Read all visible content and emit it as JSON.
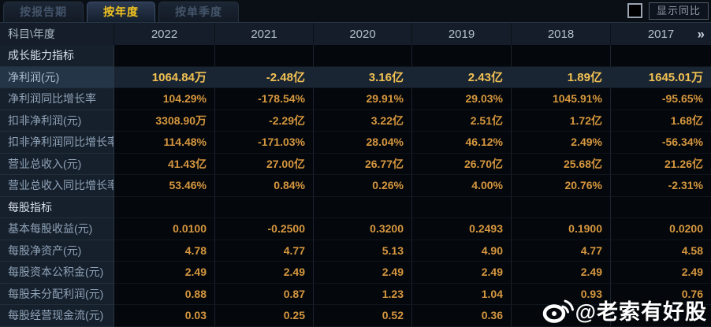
{
  "tabs": [
    {
      "label": "按报告期",
      "active": false
    },
    {
      "label": "按年度",
      "active": true
    },
    {
      "label": "按单季度",
      "active": false
    }
  ],
  "controls": {
    "show_yoy_label": "显示同比",
    "checkbox_checked": false
  },
  "table": {
    "header": [
      "科目\\年度",
      "2022",
      "2021",
      "2020",
      "2019",
      "2018",
      "2017"
    ],
    "more_icon": "»",
    "rows": [
      {
        "label": "成长能力指标",
        "type": "section",
        "values": [
          "",
          "",
          "",
          "",
          "",
          ""
        ]
      },
      {
        "label": "净利润(元)",
        "type": "highlight",
        "values": [
          "1064.84万",
          "-2.48亿",
          "3.16亿",
          "2.43亿",
          "1.89亿",
          "1645.01万"
        ]
      },
      {
        "label": "净利润同比增长率",
        "type": "data",
        "values": [
          "104.29%",
          "-178.54%",
          "29.91%",
          "29.03%",
          "1045.91%",
          "-95.65%"
        ]
      },
      {
        "label": "扣非净利润(元)",
        "type": "data",
        "values": [
          "3308.90万",
          "-2.29亿",
          "3.22亿",
          "2.51亿",
          "1.72亿",
          "1.68亿"
        ]
      },
      {
        "label": "扣非净利润同比增长率",
        "type": "data",
        "values": [
          "114.48%",
          "-171.03%",
          "28.04%",
          "46.12%",
          "2.49%",
          "-56.34%"
        ]
      },
      {
        "label": "营业总收入(元)",
        "type": "data",
        "values": [
          "41.43亿",
          "27.00亿",
          "26.77亿",
          "26.70亿",
          "25.68亿",
          "21.26亿"
        ]
      },
      {
        "label": "营业总收入同比增长率",
        "type": "data",
        "values": [
          "53.46%",
          "0.84%",
          "0.26%",
          "4.00%",
          "20.76%",
          "-2.31%"
        ]
      },
      {
        "label": "每股指标",
        "type": "section",
        "values": [
          "",
          "",
          "",
          "",
          "",
          ""
        ]
      },
      {
        "label": "基本每股收益(元)",
        "type": "data",
        "values": [
          "0.0100",
          "-0.2500",
          "0.3200",
          "0.2493",
          "0.1900",
          "0.0200"
        ]
      },
      {
        "label": "每股净资产(元)",
        "type": "data",
        "values": [
          "4.78",
          "4.77",
          "5.13",
          "4.90",
          "4.77",
          "4.58"
        ]
      },
      {
        "label": "每股资本公积金(元)",
        "type": "data",
        "values": [
          "2.49",
          "2.49",
          "2.49",
          "2.49",
          "2.49",
          "2.49"
        ]
      },
      {
        "label": "每股未分配利润(元)",
        "type": "data",
        "values": [
          "0.88",
          "0.87",
          "1.23",
          "1.04",
          "0.93",
          "0.76"
        ]
      },
      {
        "label": "每股经营现金流(元)",
        "type": "data",
        "values": [
          "0.03",
          "0.25",
          "0.52",
          "0.36",
          "",
          ""
        ]
      }
    ]
  },
  "watermark": {
    "text": "@老索有好股",
    "icon": "weibo-icon"
  },
  "colors": {
    "tab_active_text": "#f5c51f",
    "value_orange": "#d6973f",
    "highlight_gold": "#f2c252",
    "label_text": "#8fa2b7",
    "header_text": "#b3c0ce"
  }
}
